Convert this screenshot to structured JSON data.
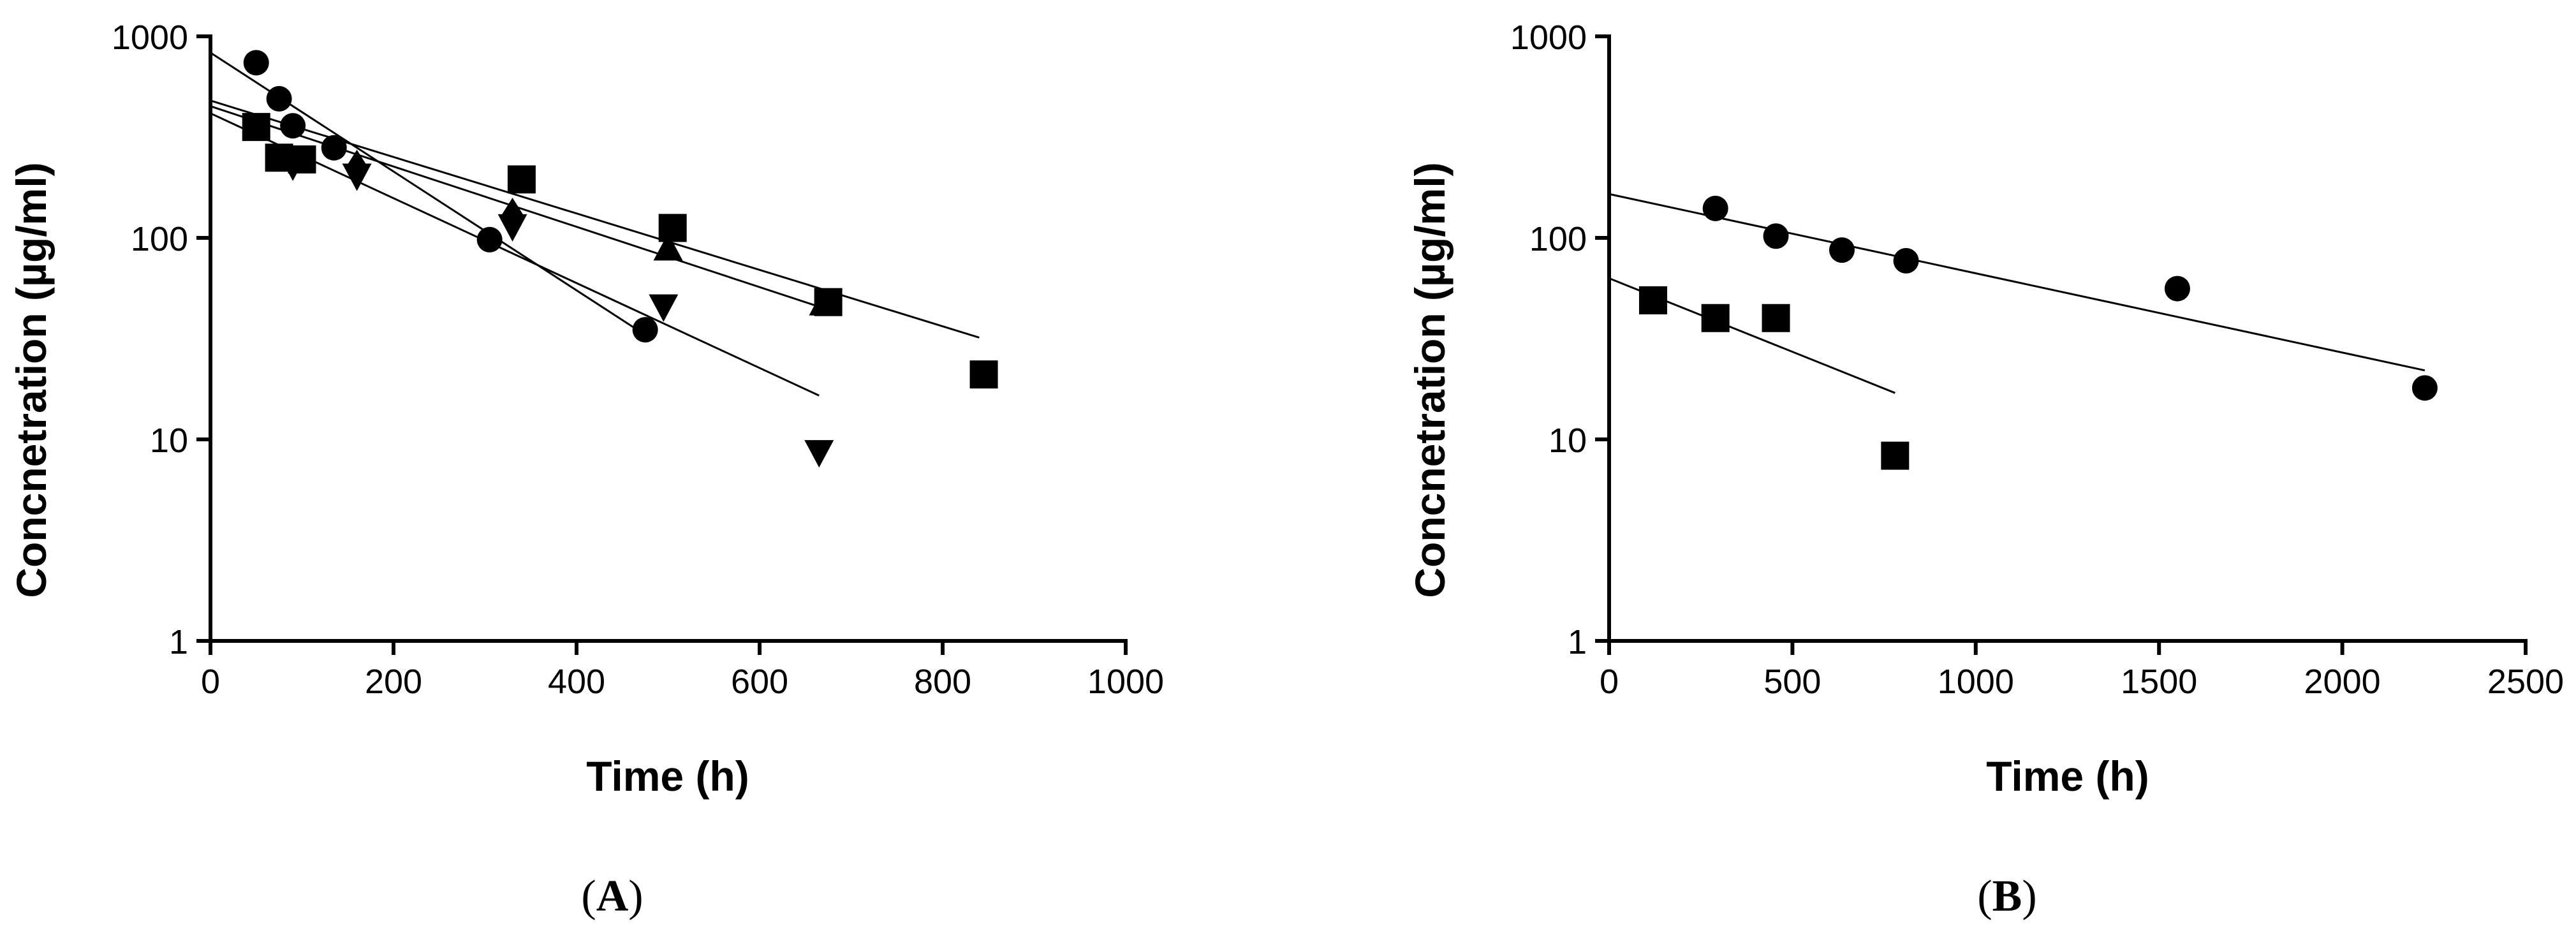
{
  "chart_data": [
    {
      "type": "scatter",
      "panel_label": "A",
      "xlabel": "Time (h)",
      "ylabel": "Concnetration (µg/ml)",
      "yscale": "log",
      "xlim": [
        0,
        1000
      ],
      "ylim": [
        1,
        1000
      ],
      "xticks": [
        0,
        200,
        400,
        600,
        800,
        1000
      ],
      "yticks": [
        1,
        10,
        100,
        1000
      ],
      "series": [
        {
          "name": "circle",
          "marker": "circle",
          "x": [
            50,
            75,
            90,
            135,
            305,
            475
          ],
          "y": [
            740,
            490,
            360,
            280,
            98,
            35
          ]
        },
        {
          "name": "square",
          "marker": "square",
          "x": [
            50,
            75,
            100,
            340,
            505,
            675,
            845
          ],
          "y": [
            355,
            250,
            245,
            195,
            112,
            48,
            21
          ]
        },
        {
          "name": "triangle-up",
          "marker": "triangle-up",
          "x": [
            500,
            670
          ],
          "y": [
            88,
            47
          ]
        },
        {
          "name": "triangle-down",
          "marker": "triangle-down",
          "x": [
            90,
            160,
            330,
            495,
            665
          ],
          "y": [
            230,
            205,
            115,
            46,
            8.7
          ]
        },
        {
          "name": "diamond",
          "marker": "diamond",
          "x": [
            160,
            330
          ],
          "y": [
            225,
            130
          ]
        }
      ],
      "fit_lines": [
        {
          "x": [
            0,
            475
          ],
          "y": [
            830,
            33
          ]
        },
        {
          "x": [
            0,
            840
          ],
          "y": [
            480,
            32
          ]
        },
        {
          "x": [
            0,
            675
          ],
          "y": [
            450,
            44
          ]
        },
        {
          "x": [
            0,
            665
          ],
          "y": [
            415,
            16.5
          ]
        }
      ]
    },
    {
      "type": "scatter",
      "panel_label": "B",
      "xlabel": "Time (h)",
      "ylabel": "Concnetration (µg/ml)",
      "yscale": "log",
      "xlim": [
        0,
        2500
      ],
      "ylim": [
        1,
        1000
      ],
      "xticks": [
        0,
        500,
        1000,
        1500,
        2000,
        2500
      ],
      "yticks": [
        1,
        10,
        100,
        1000
      ],
      "series": [
        {
          "name": "circle",
          "marker": "circle",
          "x": [
            290,
            455,
            635,
            810,
            1550,
            2225
          ],
          "y": [
            140,
            102,
            87,
            77,
            56,
            18
          ]
        },
        {
          "name": "square",
          "marker": "square",
          "x": [
            120,
            290,
            455,
            780
          ],
          "y": [
            49,
            40,
            40,
            8.3
          ]
        }
      ],
      "fit_lines": [
        {
          "x": [
            0,
            2225
          ],
          "y": [
            165,
            22
          ]
        },
        {
          "x": [
            0,
            780
          ],
          "y": [
            63,
            17
          ]
        }
      ]
    }
  ]
}
